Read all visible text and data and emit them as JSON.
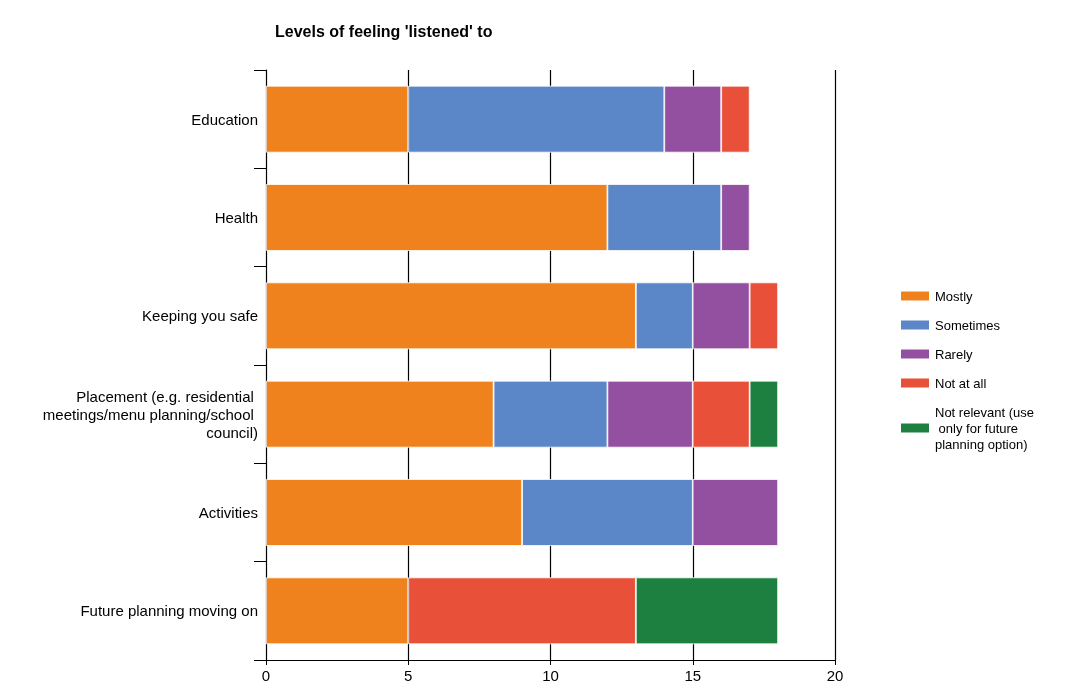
{
  "chart_data": {
    "type": "bar",
    "title": "Levels of feeling 'listened' to",
    "orientation": "horizontal",
    "stacked": true,
    "categories": [
      "Education",
      "Health",
      "Keeping you safe",
      "Placement (e.g. residential meetings/menu planning/school council)",
      "Activities",
      "Future planning moving on"
    ],
    "series": [
      {
        "name": "Mostly",
        "color": "#f0821e",
        "values": [
          5,
          12,
          13,
          8,
          9,
          5
        ]
      },
      {
        "name": "Sometimes",
        "color": "#5b86c8",
        "values": [
          9,
          4,
          2,
          4,
          6,
          null
        ]
      },
      {
        "name": "Rarely",
        "color": "#9450a0",
        "values": [
          2,
          1,
          2,
          3,
          3,
          null
        ]
      },
      {
        "name": "Not at all",
        "color": "#e8503a",
        "values": [
          1,
          null,
          1,
          2,
          null,
          8
        ]
      },
      {
        "name": "Not relevant (use only for future planning option)",
        "color": "#1e8040",
        "values": [
          null,
          null,
          null,
          1,
          null,
          5
        ]
      }
    ],
    "xlim": [
      0,
      20
    ],
    "xticks": [
      0,
      5,
      10,
      15,
      20
    ],
    "grid": "x",
    "legend": "right"
  }
}
